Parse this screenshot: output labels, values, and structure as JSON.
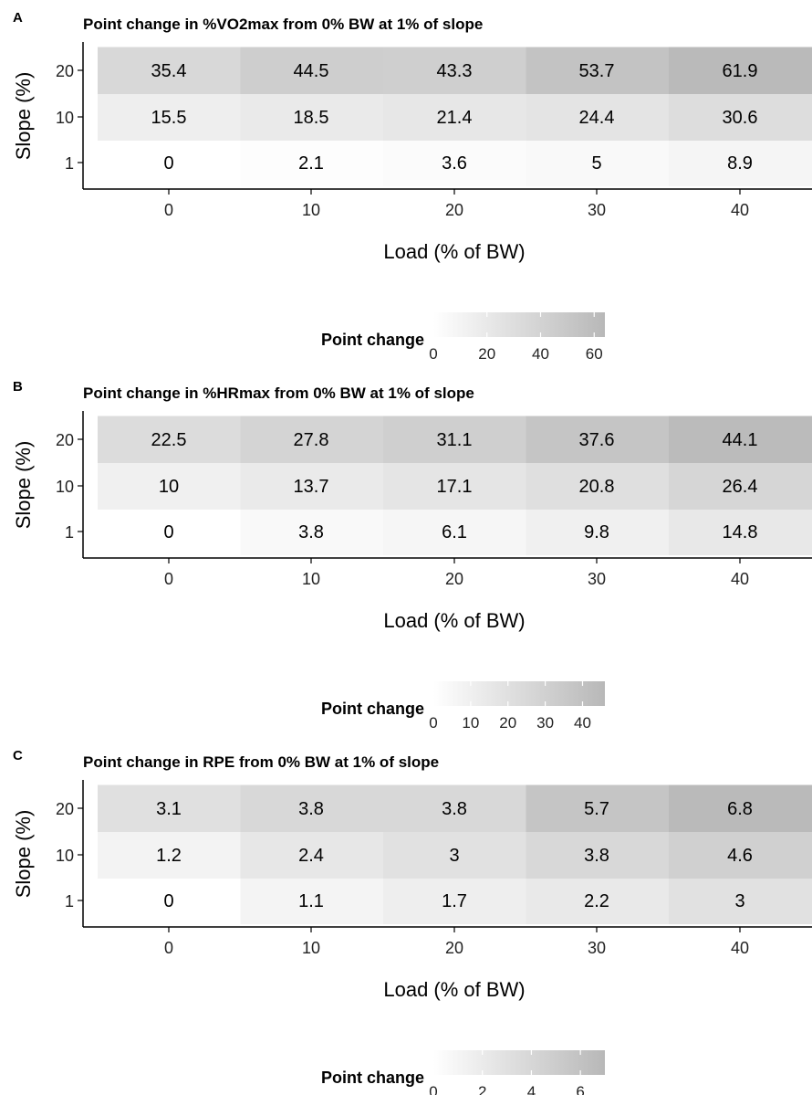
{
  "chart_data": [
    {
      "type": "heatmap",
      "panel": "A",
      "title": "Point change in %VO2max from 0% BW at 1% of slope",
      "xlabel": "Load (% of BW)",
      "ylabel": "Slope (%)",
      "x": [
        "0",
        "10",
        "20",
        "30",
        "40"
      ],
      "y": [
        "1",
        "10",
        "20"
      ],
      "values": [
        [
          0,
          2.1,
          3.6,
          5,
          8.9
        ],
        [
          15.5,
          18.5,
          21.4,
          24.4,
          30.6
        ],
        [
          35.4,
          44.5,
          43.3,
          53.7,
          61.9
        ]
      ],
      "legend": {
        "title": "Point change",
        "ticks": [
          0,
          20,
          40,
          60
        ],
        "range": [
          0,
          64
        ]
      }
    },
    {
      "type": "heatmap",
      "panel": "B",
      "title": "Point change in %HRmax from 0% BW at 1% of slope",
      "xlabel": "Load (% of BW)",
      "ylabel": "Slope (%)",
      "x": [
        "0",
        "10",
        "20",
        "30",
        "40"
      ],
      "y": [
        "1",
        "10",
        "20"
      ],
      "values": [
        [
          0,
          3.8,
          6.1,
          9.8,
          14.8
        ],
        [
          10,
          13.7,
          17.1,
          20.8,
          26.4
        ],
        [
          22.5,
          27.8,
          31.1,
          37.6,
          44.1
        ]
      ],
      "legend": {
        "title": "Point change",
        "ticks": [
          0,
          10,
          20,
          30,
          40
        ],
        "range": [
          0,
          46
        ]
      }
    },
    {
      "type": "heatmap",
      "panel": "C",
      "title": "Point change in RPE from 0% BW at 1% of slope",
      "xlabel": "Load (% of BW)",
      "ylabel": "Slope (%)",
      "x": [
        "0",
        "10",
        "20",
        "30",
        "40"
      ],
      "y": [
        "1",
        "10",
        "20"
      ],
      "values": [
        [
          0,
          1.1,
          1.7,
          2.2,
          3
        ],
        [
          1.2,
          2.4,
          3,
          3.8,
          4.6
        ],
        [
          3.1,
          3.8,
          3.8,
          5.7,
          6.8
        ]
      ],
      "legend": {
        "title": "Point change",
        "ticks": [
          0,
          2,
          4,
          6
        ],
        "range": [
          0,
          7
        ]
      }
    }
  ],
  "colors": {
    "low": "#ffffff",
    "high": "#b8b8b8",
    "axis": "#000000",
    "text": "#000000"
  }
}
